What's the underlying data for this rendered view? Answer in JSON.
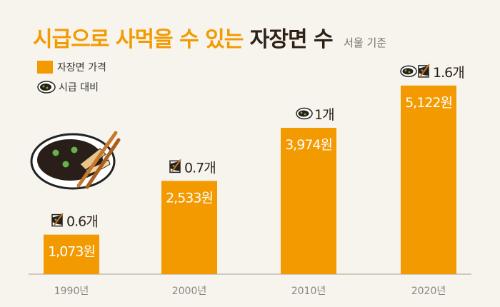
{
  "title": {
    "highlight": "시급으로 사먹을 수 있는",
    "emphasis": "자장면 수",
    "note": "서울 기준"
  },
  "legend": {
    "price_label": "자장면 가격",
    "ratio_label": "시급 대비"
  },
  "colors": {
    "bar": "#f29a00",
    "text_dark": "#2e2218",
    "axis": "#cfc9c0",
    "background": "#f7f4ee"
  },
  "chart_data": {
    "type": "bar",
    "title": "시급으로 사먹을 수 있는 자장면 수",
    "categories": [
      "1990년",
      "2000년",
      "2010년",
      "2020년"
    ],
    "series": [
      {
        "name": "자장면 가격",
        "values": [
          1073,
          2533,
          3974,
          5122
        ],
        "value_labels": [
          "1,073원",
          "2,533원",
          "3,974원",
          "5,122원"
        ]
      },
      {
        "name": "시급 대비",
        "values": [
          0.6,
          0.7,
          1,
          1.6
        ],
        "value_labels": [
          "0.6개",
          "0.7개",
          "1개",
          "1.6개"
        ]
      }
    ],
    "ylim": [
      0,
      5700
    ],
    "grid": false,
    "legend_position": "top-left"
  }
}
